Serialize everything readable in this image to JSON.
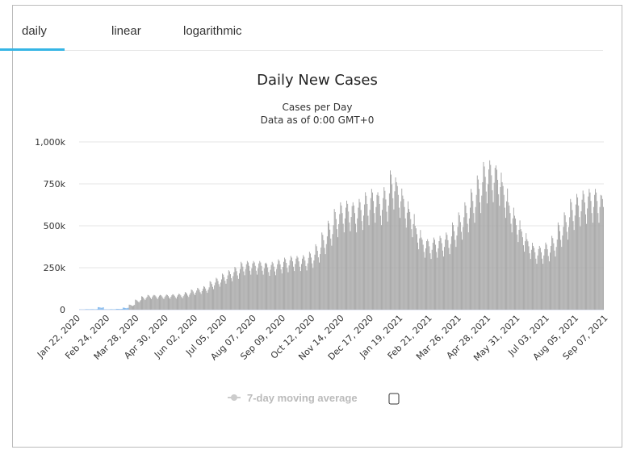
{
  "tabs": [
    {
      "label": "daily",
      "active": true
    },
    {
      "label": "linear"
    },
    {
      "label": "logarithmic"
    }
  ],
  "accent": "#35b5e5",
  "chart_data": {
    "type": "bar",
    "title": "Daily New Cases",
    "subtitle": [
      "Cases per Day",
      "Data as of 0:00 GMT+0"
    ],
    "xlabel": "",
    "ylabel": "",
    "ylim": [
      0,
      1000000
    ],
    "y_ticks": [
      {
        "v": 0,
        "label": "0"
      },
      {
        "v": 250000,
        "label": "250k"
      },
      {
        "v": 500000,
        "label": "500k"
      },
      {
        "v": 750000,
        "label": "750k"
      },
      {
        "v": 1000000,
        "label": "1,000k"
      }
    ],
    "x_tick_labels": [
      "Jan 22, 2020",
      "Feb 24, 2020",
      "Mar 28, 2020",
      "Apr 30, 2020",
      "Jun 02, 2020",
      "Jul 05, 2020",
      "Aug 07, 2020",
      "Sep 09, 2020",
      "Oct 12, 2020",
      "Nov 14, 2020",
      "Dec 17, 2020",
      "Jan 19, 2021",
      "Feb 21, 2021",
      "Mar 26, 2021",
      "Apr 28, 2021",
      "May 31, 2021",
      "Jul 03, 2021",
      "Aug 05, 2021",
      "Sep 07, 2021"
    ],
    "x_tick_interval_days": 33,
    "start_date": "Jan 22, 2020",
    "weekly_peak_values_k": [
      1,
      3,
      3,
      15,
      2,
      3,
      5,
      12,
      30,
      60,
      80,
      88,
      88,
      88,
      90,
      92,
      95,
      105,
      120,
      130,
      140,
      170,
      190,
      215,
      235,
      255,
      285,
      290,
      290,
      290,
      280,
      285,
      300,
      310,
      320,
      320,
      325,
      345,
      390,
      460,
      530,
      600,
      640,
      650,
      640,
      660,
      700,
      720,
      700,
      730,
      830,
      760,
      680,
      600,
      500,
      430,
      420,
      430,
      440,
      460,
      520,
      580,
      640,
      720,
      800,
      880,
      890,
      860,
      760,
      640,
      560,
      480,
      420,
      380,
      380,
      400,
      440,
      520,
      580,
      660,
      690,
      710,
      720,
      720,
      680,
      620,
      570,
      480
    ],
    "weekday_factors": [
      1,
      0.97,
      0.9,
      0.8,
      0.72,
      0.85,
      0.95
    ],
    "bar_color": "#a6a6a6",
    "legend": {
      "label": "7-day moving average",
      "checked": false,
      "placement": "bottom-center"
    },
    "grid": true
  }
}
